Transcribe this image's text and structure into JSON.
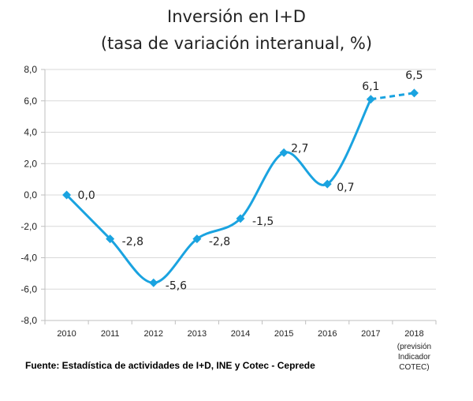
{
  "chart_data": {
    "type": "line",
    "title": "Inversión en I+D",
    "subtitle": "(tasa de variación interanual, %)",
    "x": [
      "2010",
      "2011",
      "2012",
      "2013",
      "2014",
      "2015",
      "2016",
      "2017",
      "2018"
    ],
    "x_note": [
      "(previsión",
      "Indicador",
      "COTEC)"
    ],
    "values": [
      0.0,
      -2.8,
      -5.6,
      -2.8,
      -1.5,
      2.7,
      0.7,
      6.1,
      6.5
    ],
    "value_labels": [
      "0,0",
      "-2,8",
      "-5,6",
      "-2,8",
      "-1,5",
      "2,7",
      "0,7",
      "6,1",
      "6,5"
    ],
    "forecast_from_index": 7,
    "ylim": [
      -8,
      8
    ],
    "yticks": [
      "-8,0",
      "-6,0",
      "-4,0",
      "-2,0",
      "0,0",
      "2,0",
      "4,0",
      "6,0",
      "8,0"
    ],
    "grid": true,
    "line_style": "smoothed solid line, dashed for the 2018 forecast, diamond markers",
    "color": "#1aa3e0",
    "source": "Fuente: Estadística de actividades de I+D, INE y Cotec - Ceprede"
  }
}
